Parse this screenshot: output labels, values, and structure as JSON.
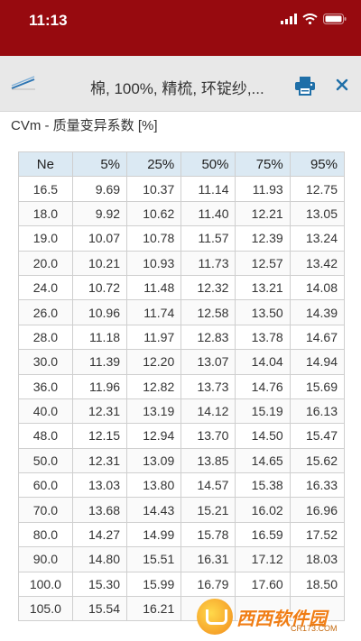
{
  "status_bar": {
    "time": "11:13"
  },
  "header": {
    "title": "棉, 100%, 精梳, 环锭纱,..."
  },
  "section": {
    "title": "CVm - 质量变异系数 [%]"
  },
  "table": {
    "columns": [
      "Ne",
      "5%",
      "25%",
      "50%",
      "75%",
      "95%"
    ],
    "rows": [
      [
        "16.5",
        "9.69",
        "10.37",
        "11.14",
        "11.93",
        "12.75"
      ],
      [
        "18.0",
        "9.92",
        "10.62",
        "11.40",
        "12.21",
        "13.05"
      ],
      [
        "19.0",
        "10.07",
        "10.78",
        "11.57",
        "12.39",
        "13.24"
      ],
      [
        "20.0",
        "10.21",
        "10.93",
        "11.73",
        "12.57",
        "13.42"
      ],
      [
        "24.0",
        "10.72",
        "11.48",
        "12.32",
        "13.21",
        "14.08"
      ],
      [
        "26.0",
        "10.96",
        "11.74",
        "12.58",
        "13.50",
        "14.39"
      ],
      [
        "28.0",
        "11.18",
        "11.97",
        "12.83",
        "13.78",
        "14.67"
      ],
      [
        "30.0",
        "11.39",
        "12.20",
        "13.07",
        "14.04",
        "14.94"
      ],
      [
        "36.0",
        "11.96",
        "12.82",
        "13.73",
        "14.76",
        "15.69"
      ],
      [
        "40.0",
        "12.31",
        "13.19",
        "14.12",
        "15.19",
        "16.13"
      ],
      [
        "48.0",
        "12.15",
        "12.94",
        "13.70",
        "14.50",
        "15.47"
      ],
      [
        "50.0",
        "12.31",
        "13.09",
        "13.85",
        "14.65",
        "15.62"
      ],
      [
        "60.0",
        "13.03",
        "13.80",
        "14.57",
        "15.38",
        "16.33"
      ],
      [
        "70.0",
        "13.68",
        "14.43",
        "15.21",
        "16.02",
        "16.96"
      ],
      [
        "80.0",
        "14.27",
        "14.99",
        "15.78",
        "16.59",
        "17.52"
      ],
      [
        "90.0",
        "14.80",
        "15.51",
        "16.31",
        "17.12",
        "18.03"
      ],
      [
        "100.0",
        "15.30",
        "15.99",
        "16.79",
        "17.60",
        "18.50"
      ],
      [
        "105.0",
        "15.54",
        "16.21",
        "",
        "",
        ""
      ]
    ]
  },
  "watermark": {
    "text": "西西软件园",
    "sub": "CR173.COM"
  },
  "colors": {
    "status_bar": "#970a0f",
    "header_bg": "#e8e8e8",
    "accent": "#1f6fa8",
    "table_header_bg": "#dbe9f3"
  }
}
